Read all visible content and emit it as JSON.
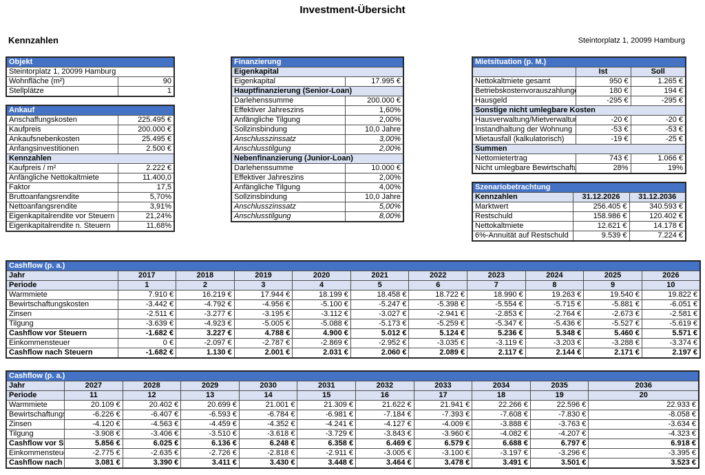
{
  "page": {
    "title": "Investment-Übersicht",
    "section_heading": "Kennzahlen",
    "address": "Steintorplatz 1, 20099 Hamburg"
  },
  "colors": {
    "header_blue": "#4472C4",
    "subheader_blue": "#D9E1F2",
    "border": "#4d4d4d",
    "text": "#000000"
  },
  "tables": {
    "objekt": {
      "title": "Objekt",
      "rows": [
        {
          "kind": "span",
          "label": "Steintorplatz 1, 20099 Hamburg"
        },
        {
          "kind": "kv",
          "label": "Wohnfläche (m²)",
          "value": "90"
        },
        {
          "kind": "kv",
          "label": "Stellplätze",
          "value": "1"
        }
      ]
    },
    "ankauf": {
      "title": "Ankauf",
      "rows": [
        {
          "kind": "kv",
          "label": "Anschaffungskosten",
          "value": "225.495 €"
        },
        {
          "kind": "kv",
          "label": "Kaufpreis",
          "value": "200.000 €"
        },
        {
          "kind": "kv",
          "label": "Ankaufsnebenkosten",
          "value": "25.495 €"
        },
        {
          "kind": "kv",
          "label": "Anfangsinvestitionen",
          "value": "2.500 €"
        },
        {
          "kind": "sub",
          "label": "Kennzahlen"
        },
        {
          "kind": "kv",
          "label": "Kaufpreis / m²",
          "value": "2.222 €"
        },
        {
          "kind": "kv",
          "label": "Anfängliche Nettokaltmiete",
          "value": "11.400,0"
        },
        {
          "kind": "kv",
          "label": "Faktor",
          "value": "17,5"
        },
        {
          "kind": "kv",
          "label": "Bruttoanfangsrendite",
          "value": "5,70%"
        },
        {
          "kind": "kv",
          "label": "Nettoanfangsrendite",
          "value": "3,91%"
        },
        {
          "kind": "kv",
          "label": "Eigenkapitalrendite vor Steuern",
          "value": "21,24%"
        },
        {
          "kind": "kv",
          "label": "Eigenkapitalrendite n. Steuern",
          "value": "11,68%"
        }
      ]
    },
    "finanzierung": {
      "title": "Finanzierung",
      "rows": [
        {
          "kind": "sub",
          "label": "Eigenkapital"
        },
        {
          "kind": "kv",
          "label": "Eigenkapital",
          "value": "17.995 €"
        },
        {
          "kind": "sub",
          "label": "Hauptfinanzierung (Senior-Loan)"
        },
        {
          "kind": "kv",
          "label": "Darlehenssumme",
          "value": "200.000 €"
        },
        {
          "kind": "kv",
          "label": "Effektiver Jahreszins",
          "value": "1,60%"
        },
        {
          "kind": "kv",
          "label": "Anfängliche Tilgung",
          "value": "2,00%"
        },
        {
          "kind": "kv",
          "label": "Sollzinsbindung",
          "value": "10,0 Jahre"
        },
        {
          "kind": "kvi",
          "label": "Anschlusszinssatz",
          "value": "3,00%"
        },
        {
          "kind": "kvi",
          "label": "Anschlusstilgung",
          "value": "2,00%"
        },
        {
          "kind": "sub",
          "label": "Nebenfinanzierung (Junior-Loan)"
        },
        {
          "kind": "kv",
          "label": "Darlehenssumme",
          "value": "10.000 €"
        },
        {
          "kind": "kv",
          "label": "Effektiver Jahreszins",
          "value": "2,00%"
        },
        {
          "kind": "kv",
          "label": "Anfängliche Tilgung",
          "value": "4,00%"
        },
        {
          "kind": "kv",
          "label": "Sollzinsbindung",
          "value": "10,0 Jahre"
        },
        {
          "kind": "kvi",
          "label": "Anschlusszinssatz",
          "value": "5,00%"
        },
        {
          "kind": "kvi",
          "label": "Anschlusstilgung",
          "value": "8,00%"
        }
      ]
    },
    "mietsituation": {
      "title": "Mietsituation (p. M.)",
      "rows": [
        {
          "kind": "cols",
          "values": [
            "Ist",
            "Soll"
          ]
        },
        {
          "kind": "kvv",
          "label": "Nettokaltmiete gesamt",
          "values": [
            "950 €",
            "1.265 €"
          ]
        },
        {
          "kind": "kvv",
          "label": "Betriebskostenvorauszahlungen",
          "values": [
            "180 €",
            "194 €"
          ]
        },
        {
          "kind": "kvv",
          "label": "Hausgeld",
          "values": [
            "-295 €",
            "-295 €"
          ]
        },
        {
          "kind": "sub",
          "label": "Sonstige nicht umlegbare Kosten"
        },
        {
          "kind": "kvv",
          "label": "Hausverwaltung/Mietverwaltung",
          "values": [
            "-20 €",
            "-20 €"
          ]
        },
        {
          "kind": "kvv",
          "label": "Instandhaltung der Wohnung",
          "values": [
            "-53 €",
            "-53 €"
          ]
        },
        {
          "kind": "kvv",
          "label": "Mietausfall (kalkulatorisch)",
          "values": [
            "-19 €",
            "-25 €"
          ]
        },
        {
          "kind": "sub",
          "label": "Summen"
        },
        {
          "kind": "kvv",
          "label": "Nettomietertrag",
          "values": [
            "743 €",
            "1.066 €"
          ]
        },
        {
          "kind": "kvv",
          "label": "Nicht umlegbare Bewirtschaftungs",
          "values": [
            "28%",
            "19%"
          ]
        }
      ]
    },
    "szenario": {
      "title": "Szenariobetrachtung",
      "rows": [
        {
          "kind": "head",
          "label": "Kennzahlen",
          "values": [
            "31.12.2026",
            "31.12.2036"
          ]
        },
        {
          "kind": "kvv",
          "label": "Marktwert",
          "values": [
            "256.405 €",
            "340.593 €"
          ]
        },
        {
          "kind": "kvv",
          "label": "Restschuld",
          "values": [
            "158.986 €",
            "120.402 €"
          ]
        },
        {
          "kind": "kvv",
          "label": "Nettokaltmiete",
          "values": [
            "12.621 €",
            "14.178 €"
          ]
        },
        {
          "kind": "kvv",
          "label": "6%-Annuität auf Restschuld",
          "values": [
            "9.539 €",
            "7.224 €"
          ]
        }
      ]
    }
  },
  "cashflow": [
    {
      "title": "Cashflow (p. a.)",
      "jahr_label": "Jahr",
      "periode_label": "Periode",
      "years": [
        "2017",
        "2018",
        "2019",
        "2020",
        "2021",
        "2022",
        "2023",
        "2024",
        "2025",
        "2026"
      ],
      "periods": [
        "1",
        "2",
        "3",
        "4",
        "5",
        "6",
        "7",
        "8",
        "9",
        "10"
      ],
      "rows": [
        {
          "label": "Warmmiete",
          "bold": false,
          "values": [
            "7.910 €",
            "16.219 €",
            "17.944 €",
            "18.199 €",
            "18.458 €",
            "18.722 €",
            "18.990 €",
            "19.263 €",
            "19.540 €",
            "19.822 €"
          ]
        },
        {
          "label": "Bewirtschaftungskosten",
          "bold": false,
          "values": [
            "-3.442 €",
            "-4.792 €",
            "-4.956 €",
            "-5.100 €",
            "-5.247 €",
            "-5.398 €",
            "-5.554 €",
            "-5.715 €",
            "-5.881 €",
            "-6.051 €"
          ]
        },
        {
          "label": "Zinsen",
          "bold": false,
          "values": [
            "-2.511 €",
            "-3.277 €",
            "-3.195 €",
            "-3.112 €",
            "-3.027 €",
            "-2.941 €",
            "-2.853 €",
            "-2.764 €",
            "-2.673 €",
            "-2.581 €"
          ]
        },
        {
          "label": "Tilgung",
          "bold": false,
          "values": [
            "-3.639 €",
            "-4.923 €",
            "-5.005 €",
            "-5.088 €",
            "-5.173 €",
            "-5.259 €",
            "-5.347 €",
            "-5.436 €",
            "-5.527 €",
            "-5.619 €"
          ]
        },
        {
          "label": "Cashflow vor Steuern",
          "bold": true,
          "values": [
            "-1.682 €",
            "3.227 €",
            "4.788 €",
            "4.900 €",
            "5.012 €",
            "5.124 €",
            "5.236 €",
            "5.348 €",
            "5.460 €",
            "5.571 €"
          ]
        },
        {
          "label": "Einkommensteuer",
          "bold": false,
          "values": [
            "0 €",
            "-2.097 €",
            "-2.787 €",
            "-2.869 €",
            "-2.952 €",
            "-3.035 €",
            "-3.119 €",
            "-3.203 €",
            "-3.288 €",
            "-3.374 €"
          ]
        },
        {
          "label": "Cashflow nach Steuern",
          "bold": true,
          "values": [
            "-1.682 €",
            "1.130 €",
            "2.001 €",
            "2.031 €",
            "2.060 €",
            "2.089 €",
            "2.117 €",
            "2.144 €",
            "2.171 €",
            "2.197 €"
          ]
        }
      ]
    },
    {
      "title": "Cashflow (p. a.)",
      "jahr_label": "Jahr",
      "periode_label": "Periode",
      "years": [
        "2027",
        "2028",
        "2029",
        "2030",
        "2031",
        "2032",
        "2033",
        "2034",
        "2035",
        "2036"
      ],
      "periods": [
        "11",
        "12",
        "13",
        "14",
        "15",
        "16",
        "17",
        "18",
        "19",
        "20"
      ],
      "rows": [
        {
          "label": "Warmmiete",
          "bold": false,
          "values": [
            "20.109 €",
            "20.402 €",
            "20.699 €",
            "21.001 €",
            "21.309 €",
            "21.622 €",
            "21.941 €",
            "22.266 €",
            "22.596 €",
            "22.933 €"
          ]
        },
        {
          "label": "Bewirtschaftungskosten",
          "bold": false,
          "values": [
            "-6.226 €",
            "-6.407 €",
            "-6.593 €",
            "-6.784 €",
            "-6.981 €",
            "-7.184 €",
            "-7.393 €",
            "-7.608 €",
            "-7.830 €",
            "-8.058 €"
          ]
        },
        {
          "label": "Zinsen",
          "bold": false,
          "values": [
            "-4.120 €",
            "-4.563 €",
            "-4.459 €",
            "-4.352 €",
            "-4.241 €",
            "-4.127 €",
            "-4.009 €",
            "-3.888 €",
            "-3.763 €",
            "-3.634 €"
          ]
        },
        {
          "label": "Tilgung",
          "bold": false,
          "values": [
            "-3.908 €",
            "-3.406 €",
            "-3.510 €",
            "-3.618 €",
            "-3.729 €",
            "-3.843 €",
            "-3.960 €",
            "-4.082 €",
            "-4.207 €",
            "-4.323 €"
          ]
        },
        {
          "label": "Cashflow vor Steuern",
          "bold": true,
          "values": [
            "5.856 €",
            "6.025 €",
            "6.136 €",
            "6.248 €",
            "6.358 €",
            "6.469 €",
            "6.579 €",
            "6.688 €",
            "6.797 €",
            "6.918 €"
          ]
        },
        {
          "label": "Einkommensteuer",
          "bold": false,
          "values": [
            "-2.775 €",
            "-2.635 €",
            "-2.726 €",
            "-2.818 €",
            "-2.911 €",
            "-3.005 €",
            "-3.100 €",
            "-3.197 €",
            "-3.296 €",
            "-3.395 €"
          ]
        },
        {
          "label": "Cashflow nach Steuern",
          "bold": true,
          "values": [
            "3.081 €",
            "3.390 €",
            "3.411 €",
            "3.430 €",
            "3.448 €",
            "3.464 €",
            "3.478 €",
            "3.491 €",
            "3.501 €",
            "3.523 €"
          ]
        }
      ]
    }
  ]
}
